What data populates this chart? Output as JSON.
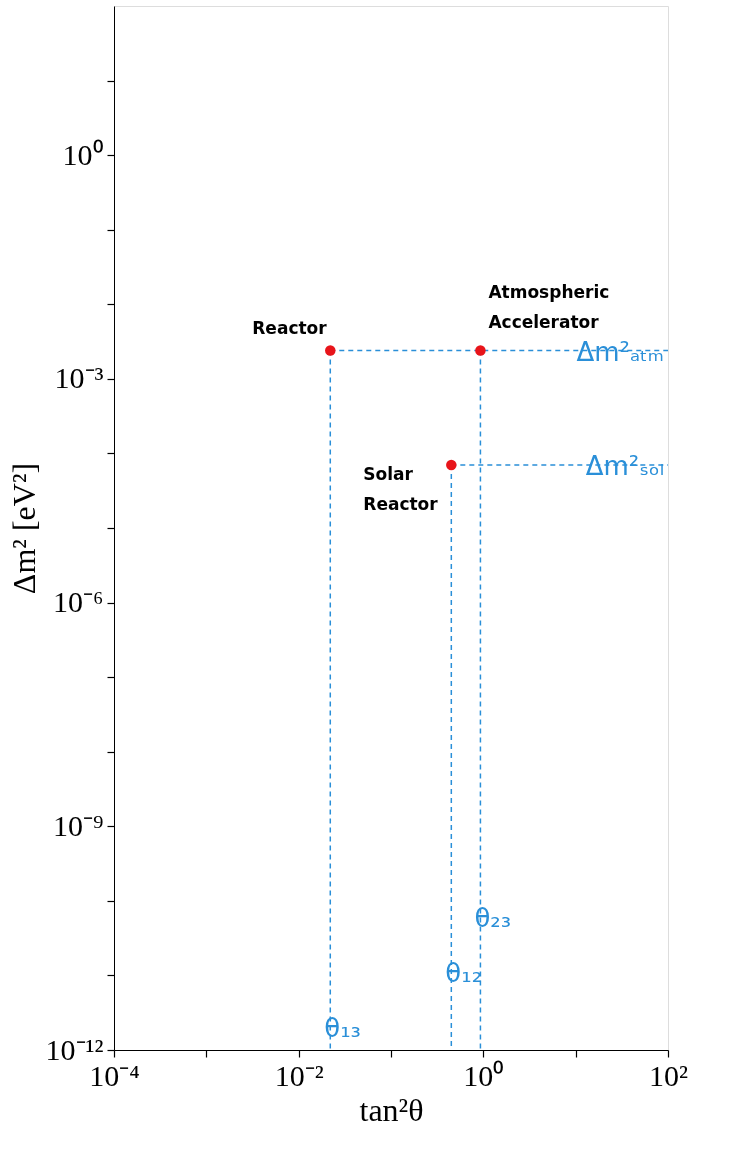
{
  "chart_data": {
    "type": "scatter",
    "xlabel": "tan²θ",
    "ylabel": "Δm² [eV²]",
    "log": "xy",
    "grid": false,
    "xlim": [
      0.0001,
      100
    ],
    "ylim": [
      1e-12,
      100
    ],
    "xticks": [
      {
        "value": 0.0001,
        "label": "10⁻⁴"
      },
      {
        "value": 0.001,
        "label": null
      },
      {
        "value": 0.01,
        "label": "10⁻²"
      },
      {
        "value": 0.1,
        "label": null
      },
      {
        "value": 1,
        "label": "10⁰"
      },
      {
        "value": 10,
        "label": null
      },
      {
        "value": 100,
        "label": "10²"
      }
    ],
    "yticks": [
      {
        "value": 1e-12,
        "label": "10⁻¹²"
      },
      {
        "value": 1e-11,
        "label": null
      },
      {
        "value": 1e-10,
        "label": null
      },
      {
        "value": 1e-09,
        "label": "10⁻⁹"
      },
      {
        "value": 1e-08,
        "label": null
      },
      {
        "value": 1e-07,
        "label": null
      },
      {
        "value": 1e-06,
        "label": "10⁻⁶"
      },
      {
        "value": 1e-05,
        "label": null
      },
      {
        "value": 0.0001,
        "label": null
      },
      {
        "value": 0.001,
        "label": "10⁻³"
      },
      {
        "value": 0.01,
        "label": null
      },
      {
        "value": 0.1,
        "label": null
      },
      {
        "value": 1,
        "label": "10⁰"
      },
      {
        "value": 10,
        "label": null
      }
    ],
    "series": [
      {
        "type": "line",
        "line_style": "dashed",
        "name": "Δm²ₐₜₘ",
        "color": "#2a8fd8",
        "x": [
          0.022,
          100
        ],
        "values": [
          0.0024,
          0.0024
        ]
      },
      {
        "type": "line",
        "line_style": "dashed",
        "name": "Δm²ₛₒₗ",
        "color": "#2a8fd8",
        "x": [
          0.45,
          100
        ],
        "values": [
          7e-05,
          7e-05
        ]
      },
      {
        "type": "line",
        "line_style": "dashed",
        "name": "θ₁₃",
        "color": "#2a8fd8",
        "x": [
          0.022,
          0.022
        ],
        "values": [
          0.0024,
          1e-12
        ]
      },
      {
        "type": "line",
        "line_style": "dashed",
        "name": "θ₁₂",
        "color": "#2a8fd8",
        "x": [
          0.45,
          0.45
        ],
        "values": [
          7e-05,
          1e-12
        ]
      },
      {
        "type": "line",
        "line_style": "dashed",
        "name": "θ₂₃",
        "color": "#2a8fd8",
        "x": [
          0.93,
          0.93
        ],
        "values": [
          0.0024,
          1e-12
        ]
      },
      {
        "name": "Reactor",
        "marker": "circle",
        "color": "#e8141a",
        "x": [
          0.022
        ],
        "values": [
          0.0024
        ]
      },
      {
        "name": "Atmospheric\nAccelerator",
        "marker": "circle",
        "color": "#e8141a",
        "x": [
          0.93
        ],
        "values": [
          0.0024
        ]
      },
      {
        "name": "Solar\nReactor",
        "marker": "circle",
        "color": "#e8141a",
        "x": [
          0.45
        ],
        "values": [
          7e-05
        ]
      }
    ]
  }
}
